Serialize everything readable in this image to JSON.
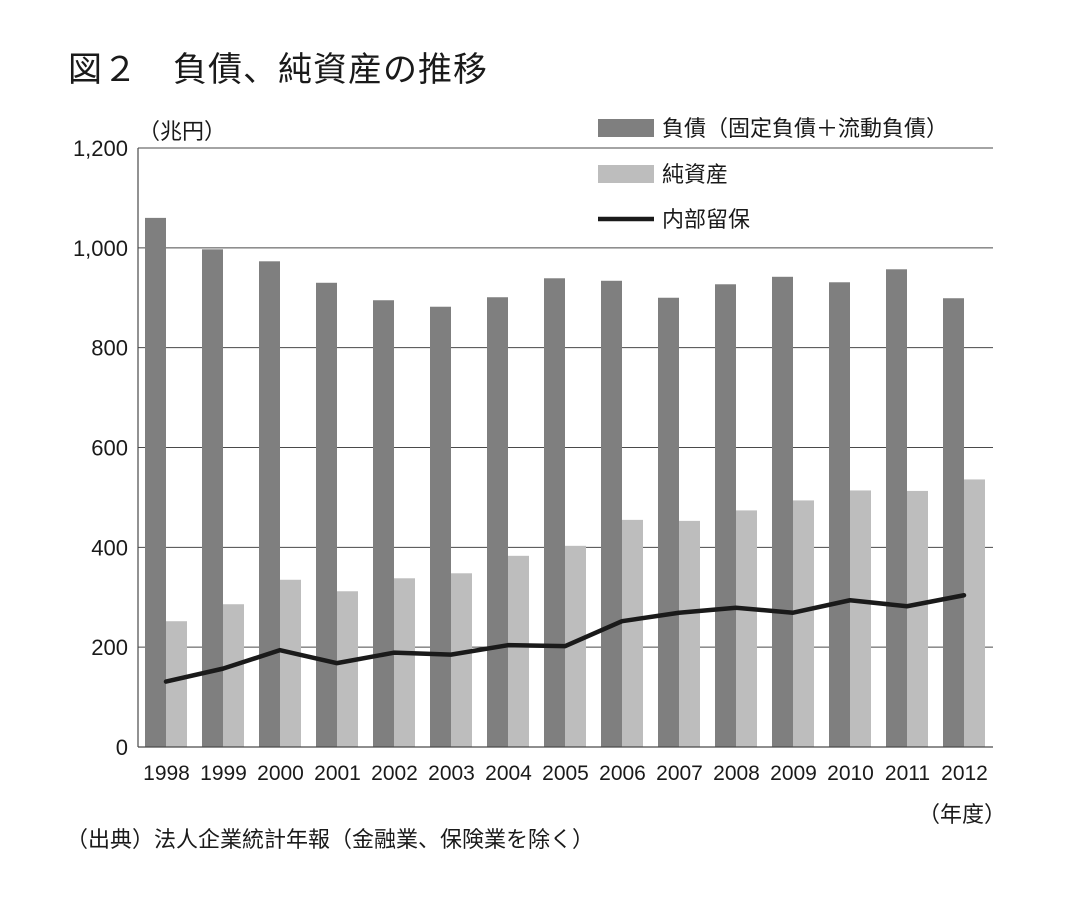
{
  "figure": {
    "title": "図２　負債、純資産の推移",
    "unit": "（兆円）",
    "source": "（出典）法人企業統計年報（金融業、保険業を除く）",
    "x_unit": "（年度）"
  },
  "chart_data": {
    "type": "bar",
    "categories": [
      "1998",
      "1999",
      "2000",
      "2001",
      "2002",
      "2003",
      "2004",
      "2005",
      "2006",
      "2007",
      "2008",
      "2009",
      "2010",
      "2011",
      "2012"
    ],
    "series": [
      {
        "name": "負債（固定負債＋流動負債）",
        "type": "bar",
        "color": "#7f7f7f",
        "values": [
          1060,
          997,
          973,
          930,
          895,
          882,
          901,
          939,
          934,
          900,
          927,
          942,
          931,
          957,
          899
        ]
      },
      {
        "name": "純資産",
        "type": "bar",
        "color": "#bdbdbd",
        "values": [
          252,
          286,
          335,
          312,
          338,
          348,
          383,
          403,
          455,
          453,
          474,
          494,
          514,
          513,
          536
        ]
      },
      {
        "name": "内部留保",
        "type": "line",
        "color": "#1a1a1a",
        "values": [
          131,
          157,
          194,
          168,
          189,
          185,
          204,
          202,
          252,
          269,
          279,
          269,
          294,
          282,
          304
        ]
      }
    ],
    "y_ticks": [
      "0",
      "200",
      "400",
      "600",
      "800",
      "1,000",
      "1,200"
    ],
    "ylim": [
      0,
      1200
    ],
    "grid": true,
    "legend_position": "top-right"
  }
}
